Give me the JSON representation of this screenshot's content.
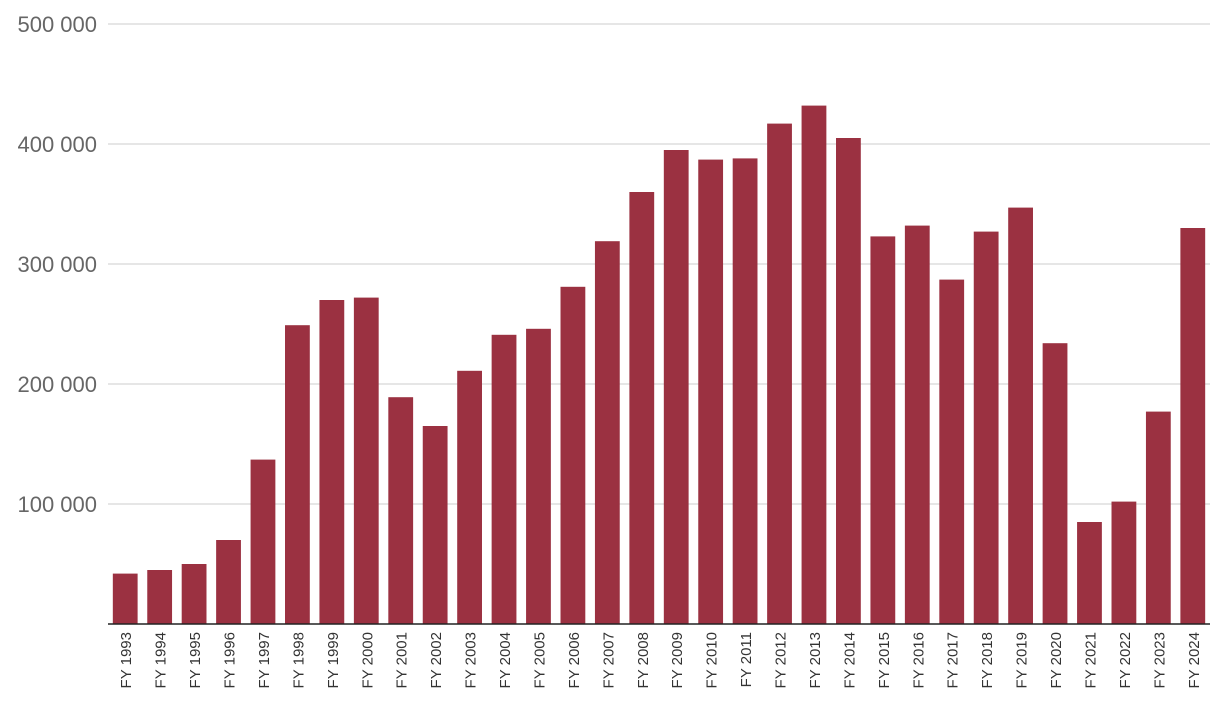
{
  "chart_data": {
    "type": "bar",
    "title": "",
    "xlabel": "",
    "ylabel": "",
    "ylim": [
      0,
      500000
    ],
    "yticks": [
      100000,
      200000,
      300000,
      400000,
      500000
    ],
    "ytick_labels": [
      "100 000",
      "200 000",
      "300 000",
      "400 000",
      "500 000"
    ],
    "grid": true,
    "legend": "none",
    "bar_color": "#9b3141",
    "categories": [
      "FY 1993",
      "FY 1994",
      "FY 1995",
      "FY 1996",
      "FY 1997",
      "FY 1998",
      "FY 1999",
      "FY 2000",
      "FY 2001",
      "FY 2002",
      "FY 2003",
      "FY 2004",
      "FY 2005",
      "FY 2006",
      "FY 2007",
      "FY 2008",
      "FY 2009",
      "FY 2010",
      "FY 2011",
      "FY 2012",
      "FY 2013",
      "FY 2014",
      "FY 2015",
      "FY 2016",
      "FY 2017",
      "FY 2018",
      "FY 2019",
      "FY 2020",
      "FY 2021",
      "FY 2022",
      "FY 2023",
      "FY 2024"
    ],
    "values": [
      42000,
      45000,
      50000,
      70000,
      137000,
      249000,
      270000,
      272000,
      189000,
      165000,
      211000,
      241000,
      246000,
      281000,
      319000,
      360000,
      395000,
      387000,
      388000,
      417000,
      432000,
      405000,
      323000,
      332000,
      287000,
      327000,
      347000,
      234000,
      85000,
      102000,
      177000,
      330000
    ]
  }
}
